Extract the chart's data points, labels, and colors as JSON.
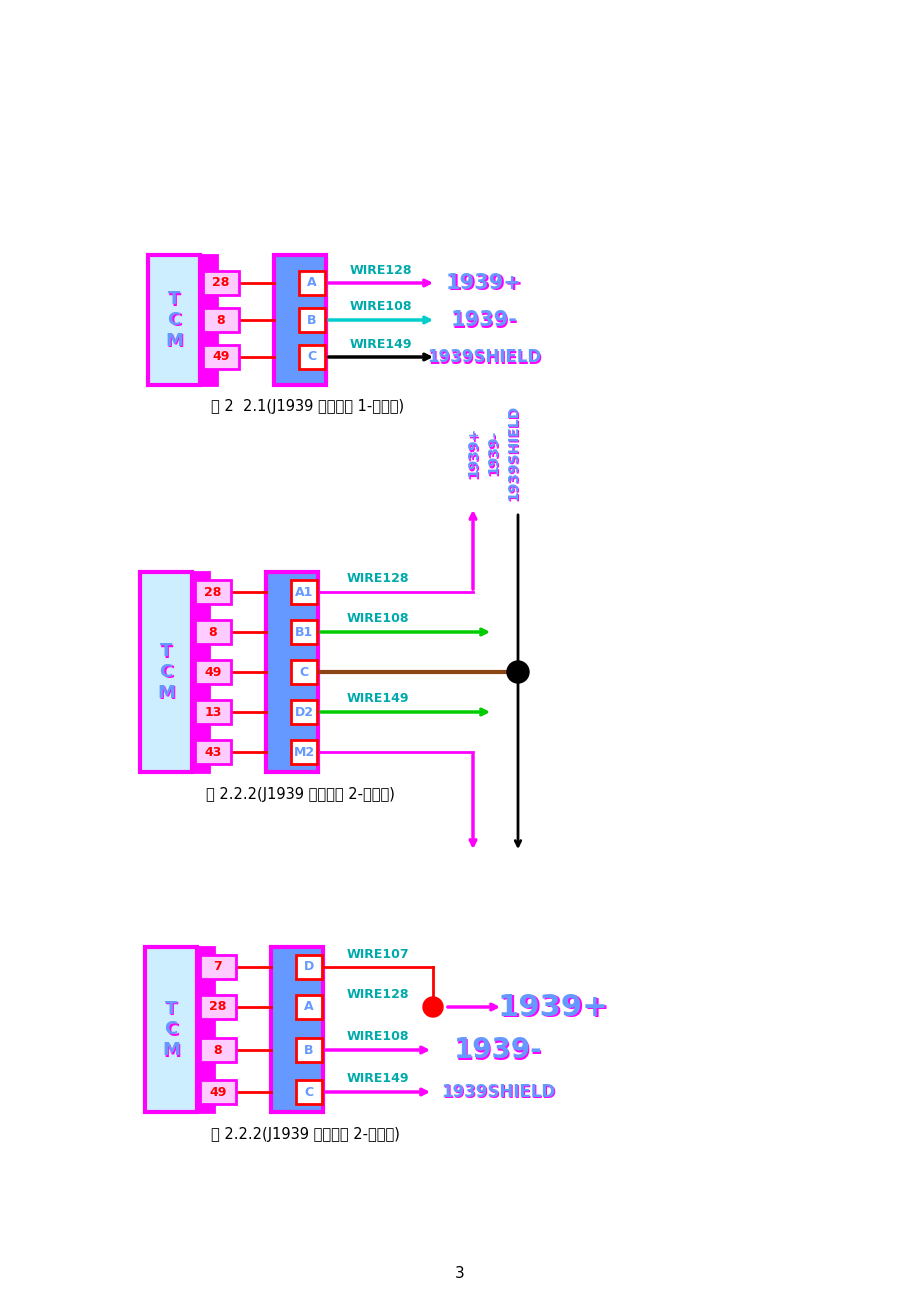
{
  "bg_color": "#ffffff",
  "magenta": "#FF00FF",
  "blue_fill": "#6699FF",
  "light_blue_fill": "#CCEEFF",
  "red": "#FF0000",
  "green": "#00CC00",
  "black": "#000000",
  "brown": "#8B4513",
  "diagram1": {
    "caption": "图 2  2.1(J1939 界面接法 1-节点型)",
    "pins": [
      "28",
      "8",
      "49"
    ],
    "connector_labels": [
      "A",
      "B",
      "C"
    ],
    "wire_labels": [
      "WIRE128",
      "WIRE108",
      "WIRE149"
    ],
    "output_labels": [
      "1939+",
      "1939-",
      "1939SHIELD"
    ],
    "arrow_colors": [
      "#FF00FF",
      "#00CCCC",
      "#000000"
    ],
    "output_fontsizes": [
      15,
      15,
      12
    ]
  },
  "diagram2": {
    "caption": "图 2.2.2(J1939 界面接法 2-通过型)",
    "pins": [
      "28",
      "8",
      "49",
      "13",
      "43"
    ],
    "connector_labels": [
      "A1",
      "B1",
      "C",
      "D2",
      "M2"
    ],
    "wire_labels_rows": [
      0,
      1,
      3
    ],
    "wire_labels": [
      "WIRE128",
      "WIRE108",
      "WIRE149"
    ],
    "vertical_labels": [
      "1939+",
      "1939-",
      "1939SHIELD"
    ],
    "h_arrow_colors": [
      "#FF00FF",
      "#00CC00",
      "#00CC00",
      "#FF00FF"
    ]
  },
  "diagram3": {
    "caption": "图 2.2.2(J1939 界面接法 2-通过型)",
    "pins": [
      "7",
      "28",
      "8",
      "49"
    ],
    "connector_labels": [
      "D",
      "A",
      "B",
      "C"
    ],
    "wire_labels": [
      "WIRE107",
      "WIRE128",
      "WIRE108",
      "WIRE149"
    ],
    "output_labels": [
      "",
      "1939+",
      "1939-",
      "1939SHIELD"
    ],
    "output_fontsizes": [
      0,
      22,
      20,
      13
    ]
  }
}
